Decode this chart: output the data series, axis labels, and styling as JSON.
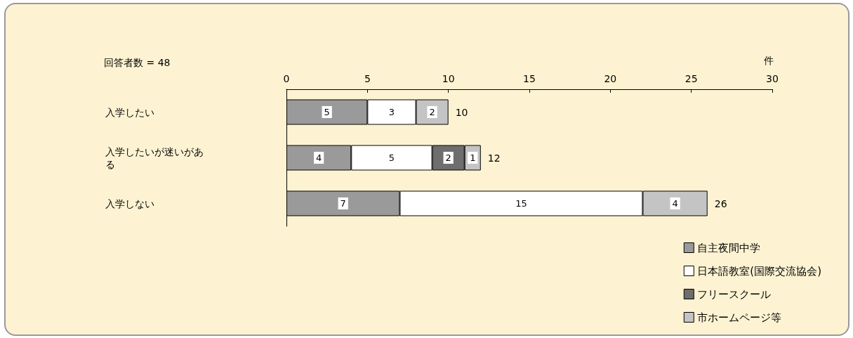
{
  "chart_data": {
    "type": "bar",
    "orientation": "horizontal",
    "stacked": true,
    "categories": [
      "入学したい",
      "入学したいが迷いがある",
      "入学しない"
    ],
    "series": [
      {
        "name": "自主夜間中学",
        "color": "#9a9a9a",
        "values": [
          5,
          4,
          7
        ]
      },
      {
        "name": "日本語教室(国際交流協会)",
        "color": "#ffffff",
        "values": [
          3,
          5,
          15
        ]
      },
      {
        "name": "フリースクール",
        "color": "#6e6e6e",
        "values": [
          null,
          2,
          null
        ]
      },
      {
        "name": "市ホームページ等",
        "color": "#c4c4c4",
        "values": [
          2,
          1,
          4
        ]
      }
    ],
    "xlim": [
      0,
      30
    ],
    "xticks": [
      0,
      5,
      10,
      15,
      20,
      25,
      30
    ],
    "xlabel": "件",
    "data_labels": true,
    "totals": [
      "10",
      "12",
      "26"
    ],
    "annotations": [
      "回答者数 = 48"
    ],
    "grid": false,
    "legend": "bottom right"
  }
}
